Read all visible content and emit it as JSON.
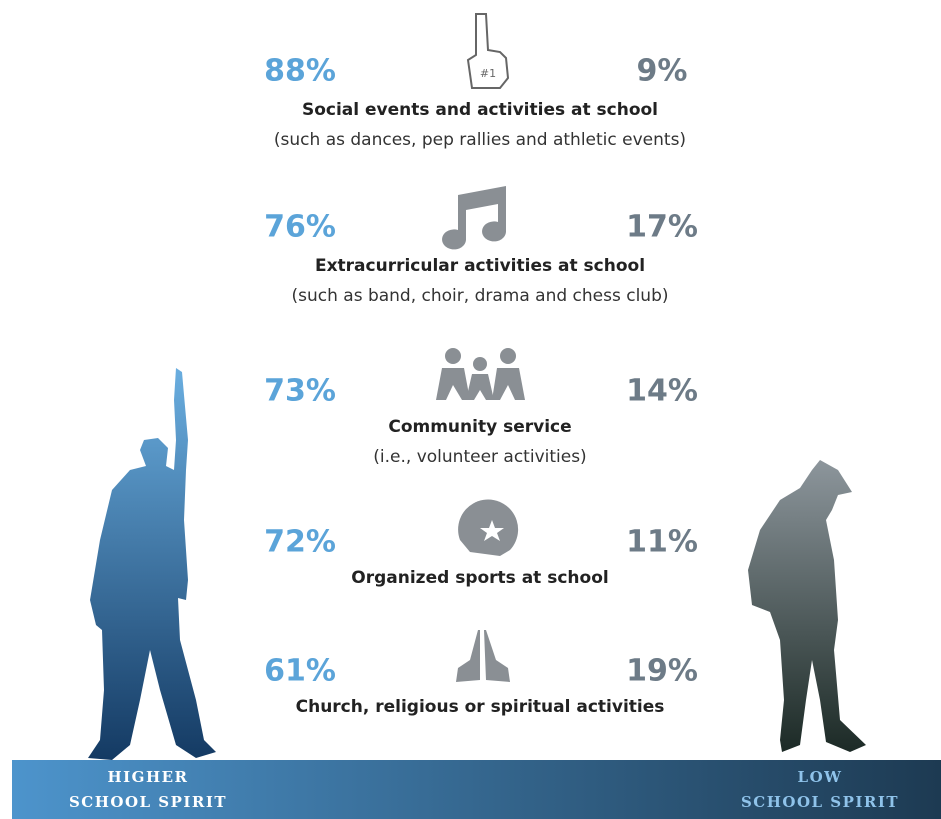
{
  "items": [
    {
      "higher": "88%",
      "low": "9%",
      "title": "Social events and activities at school",
      "subtitle": "(such as dances, pep rallies and athletic events)"
    },
    {
      "higher": "76%",
      "low": "17%",
      "title": "Extracurricular activities at school",
      "subtitle": "(such as band, choir, drama and chess club)"
    },
    {
      "higher": "73%",
      "low": "14%",
      "title": "Community service",
      "subtitle": "(i.e., volunteer activities)"
    },
    {
      "higher": "72%",
      "low": "11%",
      "title": "Organized sports at school"
    },
    {
      "higher": "61%",
      "low": "19%",
      "title": "Church, religious or spiritual activities"
    }
  ],
  "footer": {
    "left": [
      "HIGHER",
      "SCHOOL SPIRIT"
    ],
    "right": [
      "LOW",
      "SCHOOL SPIRIT"
    ]
  }
}
